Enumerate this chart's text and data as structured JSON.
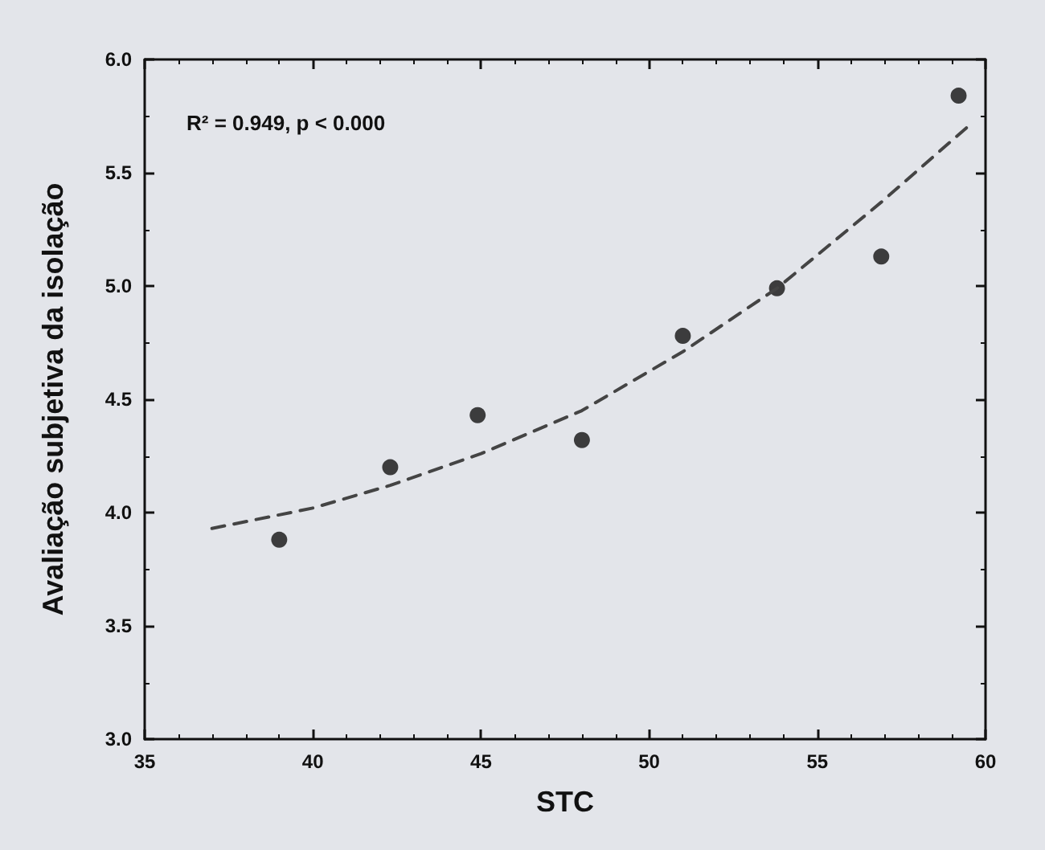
{
  "chart_data": {
    "type": "scatter",
    "xlabel": "STC",
    "ylabel": "Avaliação subjetiva da isolação",
    "annotations": [
      "R² = 0.949, p < 0.000"
    ],
    "xlim": [
      35,
      60
    ],
    "xticks": [
      35,
      40,
      45,
      50,
      55,
      60
    ],
    "ylim": [
      3.0,
      6.0
    ],
    "yticks": [
      {
        "value": 3.0,
        "label": "3.0"
      },
      {
        "value": 3.5,
        "label": "3.5"
      },
      {
        "value": 4.0,
        "label": "4.0"
      },
      {
        "value": 4.5,
        "label": "4.5"
      },
      {
        "value": 5.0,
        "label": "5.0"
      },
      {
        "value": 5.5,
        "label": "5.5"
      },
      {
        "value": 6.0,
        "label": "6.0"
      }
    ],
    "grid": false,
    "marker": "circle",
    "series": [
      {
        "color": "#111111",
        "x": [
          39.0,
          42.3,
          44.9,
          48.0,
          51.0,
          53.8,
          56.9,
          59.2
        ],
        "values": [
          3.88,
          4.2,
          4.43,
          4.32,
          4.78,
          4.99,
          5.13,
          5.84
        ]
      },
      {
        "type": "line",
        "color": "#444444",
        "line_style": "dashed",
        "marker": "none",
        "x": [
          37.0,
          40.0,
          42.3,
          45.0,
          48.0,
          51.0,
          53.8,
          56.9,
          59.6
        ],
        "values": [
          3.93,
          4.02,
          4.12,
          4.26,
          4.45,
          4.71,
          4.99,
          5.37,
          5.72
        ]
      }
    ]
  }
}
